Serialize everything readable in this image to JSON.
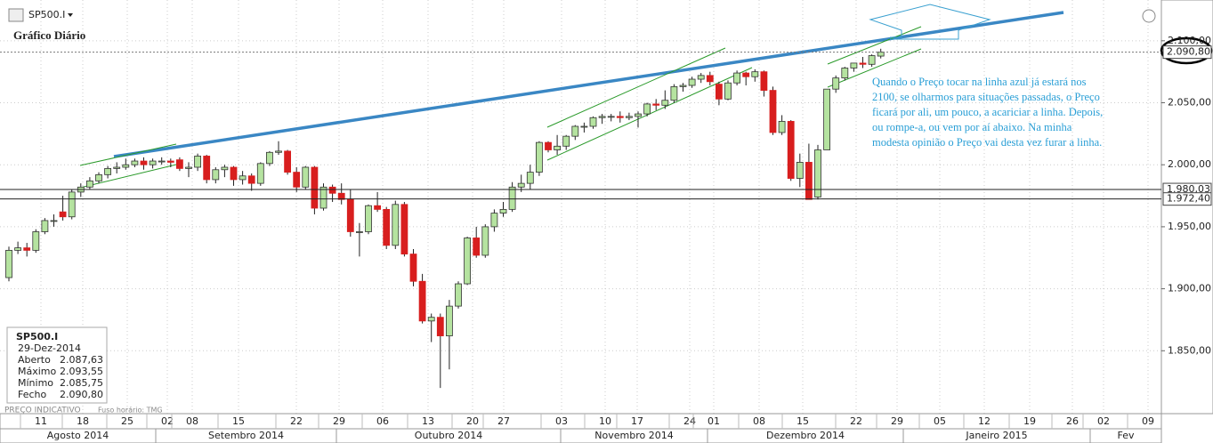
{
  "chart_data": {
    "type": "candlestick",
    "symbol": "SP500.I",
    "title": "Gráfico Diário",
    "annotation": [
      "Quando o Preço tocar na linha azul já estará nos",
      "2100, se olharmos para situações passadas, o Preço",
      "ficará por ali, um pouco, a acariciar a linha. Depois,",
      "ou rompe-a, ou vem por aí abaixo. Na minha",
      "modesta opinião o Preço vai desta vez furar a linha."
    ],
    "footer": [
      "PREÇO INDICATIVO",
      "Fuso horário: TMG"
    ],
    "up_color": "#b5e3a0",
    "down_color": "#d81e1e",
    "ylim": [
      1800,
      2130
    ],
    "yticks": [
      {
        "value": 1850,
        "label": "1.850,00"
      },
      {
        "value": 1900,
        "label": "1.900,00"
      },
      {
        "value": 1950,
        "label": "1.950,00"
      },
      {
        "value": 2000,
        "label": "2.000,00"
      },
      {
        "value": 2050,
        "label": "2.050,00"
      },
      {
        "value": 2100,
        "label": "2.100,00"
      }
    ],
    "price_lines": [
      {
        "value": 2090.8,
        "label": "2.090,80"
      },
      {
        "value": 1980.03,
        "label": "1.980,03"
      },
      {
        "value": 1972.4,
        "label": "1.972,40"
      }
    ],
    "x_labels": [
      "11",
      "18",
      "25",
      "02",
      "08",
      "15",
      "22",
      "29",
      "06",
      "13",
      "20",
      "27",
      "03",
      "10",
      "17",
      "24",
      "01",
      "08",
      "15",
      "22",
      "29",
      "05",
      "12",
      "19",
      "26",
      "02",
      "09"
    ],
    "months": [
      "Agosto 2014",
      "Setembro 2014",
      "Outubro 2014",
      "Novembro 2014",
      "Dezembro 2014",
      "Janeiro 2015",
      "Fev"
    ],
    "info": {
      "symbol": "SP500.I",
      "date": "29-Dez-2014",
      "rows": [
        [
          "Aberto",
          "2.087,63"
        ],
        [
          "Máximo",
          "2.093,55"
        ],
        [
          "Mínimo",
          "2.085,75"
        ],
        [
          "Fecho",
          "2.090,80"
        ]
      ]
    },
    "ohlc": [
      [
        1909,
        1934,
        1906,
        1931
      ],
      [
        1931,
        1938,
        1928,
        1933
      ],
      [
        1933,
        1937,
        1926,
        1931
      ],
      [
        1931,
        1948,
        1929,
        1946
      ],
      [
        1946,
        1957,
        1944,
        1955
      ],
      [
        1955,
        1960,
        1950,
        1955
      ],
      [
        1962,
        1975,
        1955,
        1958
      ],
      [
        1958,
        1980,
        1956,
        1978
      ],
      [
        1978,
        1985,
        1974,
        1982
      ],
      [
        1982,
        1990,
        1980,
        1987
      ],
      [
        1987,
        1994,
        1985,
        1992
      ],
      [
        1992,
        1999,
        1989,
        1997
      ],
      [
        1997,
        2002,
        1993,
        1998
      ],
      [
        1998,
        2005,
        1996,
        2000
      ],
      [
        2000,
        2005,
        1998,
        2003
      ],
      [
        2003,
        2006,
        1996,
        2000
      ],
      [
        2000,
        2005,
        1997,
        2003
      ],
      [
        2003,
        2006,
        2000,
        2003
      ],
      [
        2003,
        2005,
        1998,
        2002
      ],
      [
        2004,
        2006,
        1995,
        1997
      ],
      [
        1997,
        2002,
        1990,
        1998
      ],
      [
        1998,
        2009,
        1995,
        2007
      ],
      [
        2007,
        2008,
        1985,
        1988
      ],
      [
        1988,
        1998,
        1985,
        1996
      ],
      [
        1996,
        2000,
        1990,
        1998
      ],
      [
        1998,
        1999,
        1983,
        1988
      ],
      [
        1988,
        1995,
        1984,
        1991
      ],
      [
        1991,
        1993,
        1979,
        1985
      ],
      [
        1985,
        2002,
        1983,
        2001
      ],
      [
        2001,
        2011,
        1999,
        2010
      ],
      [
        2010,
        2019,
        2008,
        2011
      ],
      [
        2011,
        2012,
        1992,
        1994
      ],
      [
        1994,
        1998,
        1978,
        1982
      ],
      [
        1982,
        1999,
        1980,
        1998
      ],
      [
        1998,
        1999,
        1960,
        1965
      ],
      [
        1965,
        1985,
        1963,
        1982
      ],
      [
        1982,
        1984,
        1970,
        1977
      ],
      [
        1977,
        1985,
        1968,
        1972
      ],
      [
        1972,
        1980,
        1942,
        1946
      ],
      [
        1946,
        1953,
        1926,
        1946
      ],
      [
        1946,
        1968,
        1944,
        1967
      ],
      [
        1967,
        1978,
        1962,
        1964
      ],
      [
        1964,
        1966,
        1932,
        1935
      ],
      [
        1935,
        1971,
        1932,
        1968
      ],
      [
        1968,
        1970,
        1926,
        1928
      ],
      [
        1928,
        1932,
        1902,
        1906
      ],
      [
        1906,
        1912,
        1872,
        1874
      ],
      [
        1874,
        1880,
        1857,
        1877
      ],
      [
        1877,
        1880,
        1820,
        1862
      ],
      [
        1862,
        1891,
        1835,
        1886
      ],
      [
        1886,
        1906,
        1884,
        1904
      ],
      [
        1904,
        1942,
        1903,
        1941
      ],
      [
        1941,
        1950,
        1925,
        1927
      ],
      [
        1927,
        1952,
        1925,
        1950
      ],
      [
        1950,
        1964,
        1946,
        1961
      ],
      [
        1961,
        1970,
        1958,
        1964
      ],
      [
        1964,
        1986,
        1962,
        1982
      ],
      [
        1982,
        1992,
        1978,
        1985
      ],
      [
        1985,
        2000,
        1980,
        1994
      ],
      [
        1994,
        2019,
        1991,
        2018
      ],
      [
        2018,
        2019,
        2010,
        2012
      ],
      [
        2012,
        2024,
        2008,
        2015
      ],
      [
        2015,
        2024,
        2012,
        2023
      ],
      [
        2023,
        2032,
        2020,
        2031
      ],
      [
        2031,
        2034,
        2026,
        2031
      ],
      [
        2031,
        2039,
        2029,
        2038
      ],
      [
        2038,
        2041,
        2033,
        2039
      ],
      [
        2039,
        2041,
        2035,
        2039
      ],
      [
        2039,
        2043,
        2034,
        2038
      ],
      [
        2038,
        2042,
        2036,
        2039
      ],
      [
        2039,
        2043,
        2030,
        2041
      ],
      [
        2041,
        2050,
        2039,
        2049
      ],
      [
        2049,
        2053,
        2044,
        2048
      ],
      [
        2048,
        2060,
        2045,
        2052
      ],
      [
        2052,
        2065,
        2050,
        2063
      ],
      [
        2063,
        2066,
        2059,
        2064
      ],
      [
        2064,
        2071,
        2062,
        2069
      ],
      [
        2069,
        2074,
        2066,
        2072
      ],
      [
        2072,
        2075,
        2064,
        2067
      ],
      [
        2065,
        2067,
        2048,
        2053
      ],
      [
        2053,
        2068,
        2052,
        2066
      ],
      [
        2066,
        2076,
        2064,
        2074
      ],
      [
        2074,
        2075,
        2064,
        2071
      ],
      [
        2071,
        2077,
        2067,
        2075
      ],
      [
        2075,
        2076,
        2055,
        2060
      ],
      [
        2060,
        2063,
        2024,
        2026
      ],
      [
        2026,
        2040,
        2024,
        2035
      ],
      [
        2035,
        2036,
        1987,
        1989
      ],
      [
        1989,
        2009,
        1982,
        2002
      ],
      [
        2002,
        2017,
        1972,
        1972
      ],
      [
        1974,
        2016,
        1972,
        2012
      ],
      [
        2012,
        2061,
        2012,
        2061
      ],
      [
        2061,
        2072,
        2058,
        2070
      ],
      [
        2070,
        2079,
        2068,
        2078
      ],
      [
        2078,
        2082,
        2075,
        2082
      ],
      [
        2082,
        2087,
        2078,
        2081
      ],
      [
        2081,
        2089,
        2079,
        2088
      ],
      [
        2087.63,
        2093.55,
        2085.75,
        2090.8
      ]
    ]
  }
}
